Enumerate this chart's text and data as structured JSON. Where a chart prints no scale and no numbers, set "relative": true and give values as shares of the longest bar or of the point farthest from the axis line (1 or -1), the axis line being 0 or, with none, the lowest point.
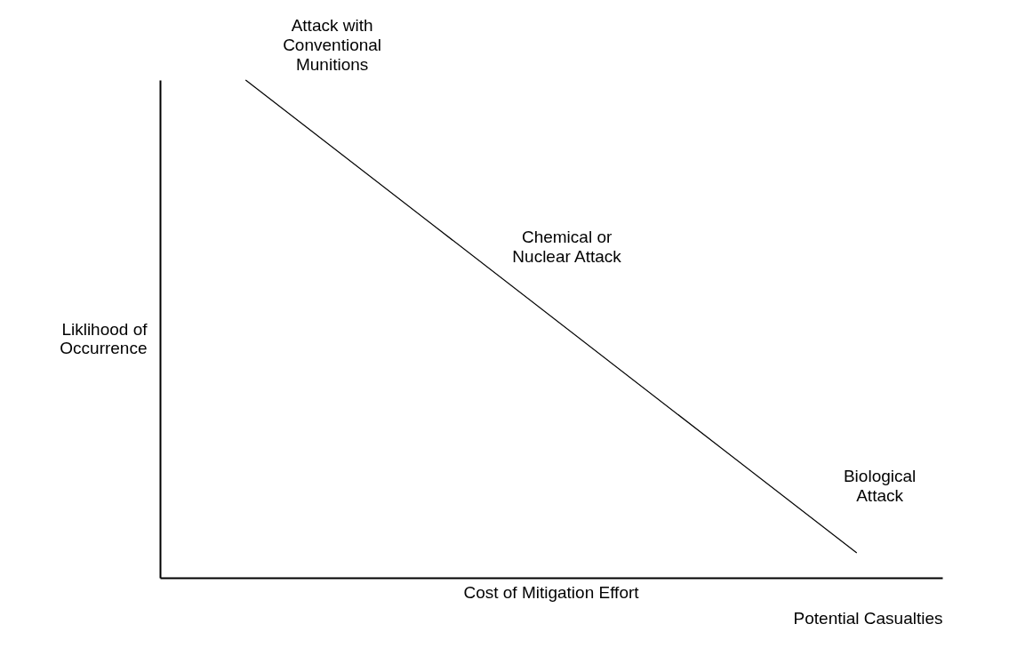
{
  "chart_data": {
    "type": "line",
    "relative": true,
    "xlabel": "Potential Casualties",
    "ylabel": "Liklihood of Occurrence",
    "categories": [
      null,
      null
    ],
    "series": [
      {
        "color": "#000000",
        "values": [
          1,
          0.05
        ]
      }
    ],
    "annotations": [
      "Attack with Conventional Munitions",
      "Chemical or Nuclear Attack",
      "Biological Attack",
      "Cost of Mitigation Effort"
    ]
  }
}
